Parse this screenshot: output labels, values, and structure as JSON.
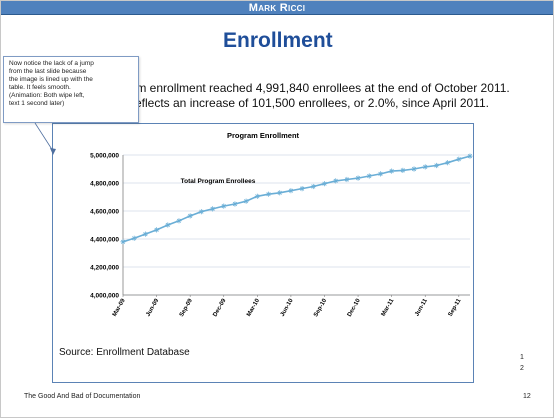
{
  "header": {
    "title": "Mark Ricci"
  },
  "slide": {
    "title": "Enrollment",
    "body_line1": "gram enrollment reached 4,991,840 enrollees at the end of October 2011.",
    "body_line2": "is reflects an increase of 101,500 enrollees, or 2.0%, since April 2011."
  },
  "note": {
    "lines": [
      "Now notice the lack of a jump",
      "from the last slide because",
      "the image is lined up with the",
      "table. It feels smooth.",
      "(Animation: Both wipe left,",
      "text 1 second later)"
    ]
  },
  "chart_data": {
    "type": "line",
    "title": "Program Enrollment",
    "annotation": "Total Program Enrollees",
    "xlabel": "",
    "ylabel": "",
    "ylim": [
      4000000,
      5000000
    ],
    "yticks": [
      4000000,
      4200000,
      4400000,
      4600000,
      4800000,
      5000000
    ],
    "ytick_labels": [
      "4,000,000",
      "4,200,000",
      "4,400,000",
      "4,600,000",
      "4,800,000",
      "5,000,000"
    ],
    "xtick_labels": [
      "Mar-09",
      "Jun-09",
      "Sep-09",
      "Dec-09",
      "Mar-10",
      "Jun-10",
      "Sep-10",
      "Dec-10",
      "Mar-11",
      "Jun-11",
      "Sep-11"
    ],
    "x": [
      "Mar-09",
      "Apr-09",
      "May-09",
      "Jun-09",
      "Jul-09",
      "Aug-09",
      "Sep-09",
      "Oct-09",
      "Nov-09",
      "Dec-09",
      "Jan-10",
      "Feb-10",
      "Mar-10",
      "Apr-10",
      "May-10",
      "Jun-10",
      "Jul-10",
      "Aug-10",
      "Sep-10",
      "Oct-10",
      "Nov-10",
      "Dec-10",
      "Jan-11",
      "Feb-11",
      "Mar-11",
      "Apr-11",
      "May-11",
      "Jun-11",
      "Jul-11",
      "Aug-11",
      "Sep-11",
      "Oct-11"
    ],
    "series": [
      {
        "name": "Total Program Enrollees",
        "values": [
          4380000,
          4405000,
          4435000,
          4465000,
          4500000,
          4530000,
          4565000,
          4595000,
          4615000,
          4635000,
          4650000,
          4670000,
          4705000,
          4720000,
          4730000,
          4745000,
          4760000,
          4775000,
          4795000,
          4815000,
          4825000,
          4835000,
          4850000,
          4865000,
          4885000,
          4890000,
          4900000,
          4915000,
          4925000,
          4945000,
          4970000,
          4991840
        ]
      }
    ],
    "grid": true,
    "line_color": "#6aaed6",
    "marker": "asterisk"
  },
  "source": "Source: Enrollment Database",
  "side_numbers": [
    "1",
    "2"
  ],
  "footer": {
    "text": "The Good And Bad of Documentation",
    "page": "12"
  },
  "colors": {
    "header_bg": "#4f81bd",
    "title": "#1f4e99",
    "frame": "#5b83b5"
  }
}
